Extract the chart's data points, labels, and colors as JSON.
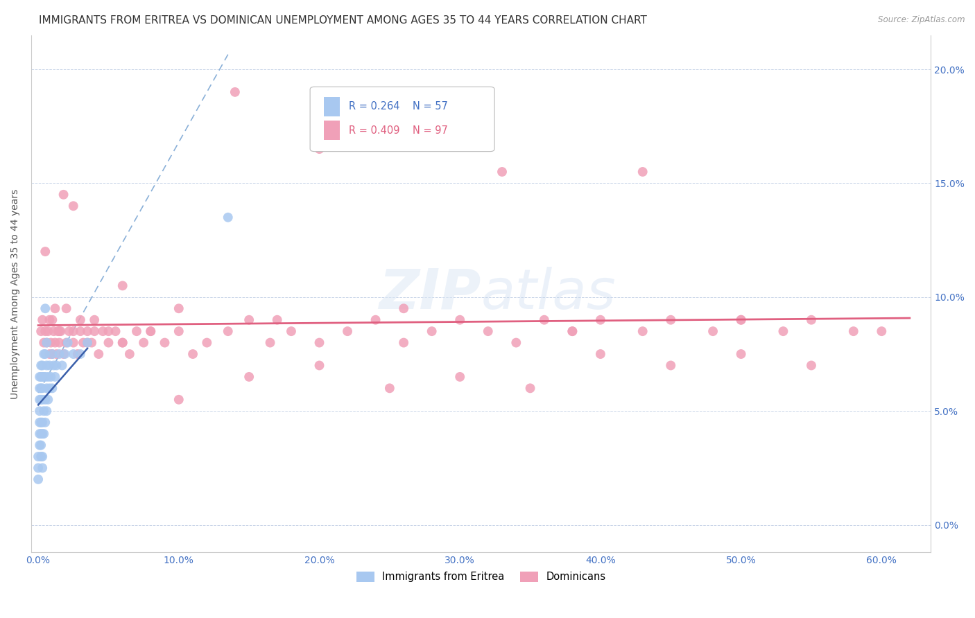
{
  "title": "IMMIGRANTS FROM ERITREA VS DOMINICAN UNEMPLOYMENT AMONG AGES 35 TO 44 YEARS CORRELATION CHART",
  "source": "Source: ZipAtlas.com",
  "ylabel": "Unemployment Among Ages 35 to 44 years",
  "xlabel_ticks": [
    "0.0%",
    "10.0%",
    "20.0%",
    "30.0%",
    "40.0%",
    "50.0%",
    "60.0%"
  ],
  "xlabel_vals": [
    0.0,
    0.1,
    0.2,
    0.3,
    0.4,
    0.5,
    0.6
  ],
  "ylabel_ticks": [
    "0.0%",
    "5.0%",
    "10.0%",
    "15.0%",
    "20.0%"
  ],
  "ylabel_vals": [
    0.0,
    0.05,
    0.1,
    0.15,
    0.2
  ],
  "xlim": [
    -0.005,
    0.635
  ],
  "ylim": [
    -0.012,
    0.215
  ],
  "legend_blue_r": "0.264",
  "legend_blue_n": "57",
  "legend_pink_r": "0.409",
  "legend_pink_n": "97",
  "legend_blue_label": "Immigrants from Eritrea",
  "legend_pink_label": "Dominicans",
  "blue_color": "#a8c8f0",
  "pink_color": "#f0a0b8",
  "blue_line_color": "#3a5faa",
  "pink_line_color": "#e06080",
  "blue_dashed_color": "#8ab0d8",
  "watermark_zip": "ZIP",
  "watermark_atlas": "atlas",
  "title_fontsize": 11,
  "label_fontsize": 10,
  "tick_fontsize": 10,
  "tick_color": "#4472c4",
  "blue_x": [
    0.001,
    0.001,
    0.001,
    0.001,
    0.001,
    0.001,
    0.001,
    0.002,
    0.002,
    0.002,
    0.002,
    0.002,
    0.002,
    0.002,
    0.002,
    0.003,
    0.003,
    0.003,
    0.003,
    0.003,
    0.003,
    0.003,
    0.003,
    0.004,
    0.004,
    0.004,
    0.004,
    0.005,
    0.005,
    0.005,
    0.005,
    0.006,
    0.006,
    0.006,
    0.006,
    0.007,
    0.007,
    0.008,
    0.008,
    0.009,
    0.01,
    0.01,
    0.011,
    0.012,
    0.013,
    0.015,
    0.017,
    0.019,
    0.021,
    0.025,
    0.03,
    0.035,
    0.0,
    0.0,
    0.0,
    0.005,
    0.135
  ],
  "blue_y": [
    0.035,
    0.04,
    0.045,
    0.05,
    0.055,
    0.06,
    0.065,
    0.03,
    0.035,
    0.04,
    0.045,
    0.055,
    0.06,
    0.065,
    0.07,
    0.025,
    0.03,
    0.04,
    0.045,
    0.055,
    0.06,
    0.065,
    0.07,
    0.04,
    0.05,
    0.065,
    0.075,
    0.045,
    0.055,
    0.065,
    0.075,
    0.05,
    0.06,
    0.07,
    0.08,
    0.055,
    0.065,
    0.06,
    0.07,
    0.065,
    0.06,
    0.075,
    0.07,
    0.065,
    0.07,
    0.075,
    0.07,
    0.075,
    0.08,
    0.075,
    0.075,
    0.08,
    0.02,
    0.025,
    0.03,
    0.095,
    0.135
  ],
  "pink_x": [
    0.002,
    0.003,
    0.004,
    0.005,
    0.006,
    0.007,
    0.008,
    0.009,
    0.01,
    0.011,
    0.012,
    0.013,
    0.014,
    0.015,
    0.016,
    0.018,
    0.02,
    0.022,
    0.025,
    0.028,
    0.03,
    0.032,
    0.035,
    0.038,
    0.04,
    0.043,
    0.046,
    0.05,
    0.055,
    0.06,
    0.065,
    0.07,
    0.075,
    0.08,
    0.09,
    0.1,
    0.11,
    0.12,
    0.135,
    0.15,
    0.165,
    0.18,
    0.2,
    0.22,
    0.24,
    0.26,
    0.28,
    0.3,
    0.32,
    0.34,
    0.36,
    0.38,
    0.4,
    0.43,
    0.45,
    0.48,
    0.5,
    0.53,
    0.55,
    0.58,
    0.6,
    0.01,
    0.015,
    0.02,
    0.025,
    0.03,
    0.035,
    0.04,
    0.05,
    0.06,
    0.08,
    0.1,
    0.15,
    0.2,
    0.25,
    0.3,
    0.35,
    0.4,
    0.45,
    0.5,
    0.55,
    0.14,
    0.2,
    0.28,
    0.33,
    0.43,
    0.005,
    0.008,
    0.012,
    0.018,
    0.025,
    0.06,
    0.1,
    0.17,
    0.26,
    0.38,
    0.5
  ],
  "pink_y": [
    0.085,
    0.09,
    0.08,
    0.085,
    0.08,
    0.085,
    0.075,
    0.08,
    0.075,
    0.085,
    0.08,
    0.075,
    0.085,
    0.08,
    0.085,
    0.075,
    0.08,
    0.085,
    0.08,
    0.075,
    0.085,
    0.08,
    0.085,
    0.08,
    0.085,
    0.075,
    0.085,
    0.08,
    0.085,
    0.08,
    0.075,
    0.085,
    0.08,
    0.085,
    0.08,
    0.085,
    0.075,
    0.08,
    0.085,
    0.09,
    0.08,
    0.085,
    0.08,
    0.085,
    0.09,
    0.08,
    0.085,
    0.09,
    0.085,
    0.08,
    0.09,
    0.085,
    0.09,
    0.085,
    0.09,
    0.085,
    0.09,
    0.085,
    0.09,
    0.085,
    0.085,
    0.09,
    0.085,
    0.095,
    0.085,
    0.09,
    0.08,
    0.09,
    0.085,
    0.08,
    0.085,
    0.055,
    0.065,
    0.07,
    0.06,
    0.065,
    0.06,
    0.075,
    0.07,
    0.075,
    0.07,
    0.19,
    0.165,
    0.175,
    0.155,
    0.155,
    0.12,
    0.09,
    0.095,
    0.145,
    0.14,
    0.105,
    0.095,
    0.09,
    0.095,
    0.085,
    0.09
  ]
}
